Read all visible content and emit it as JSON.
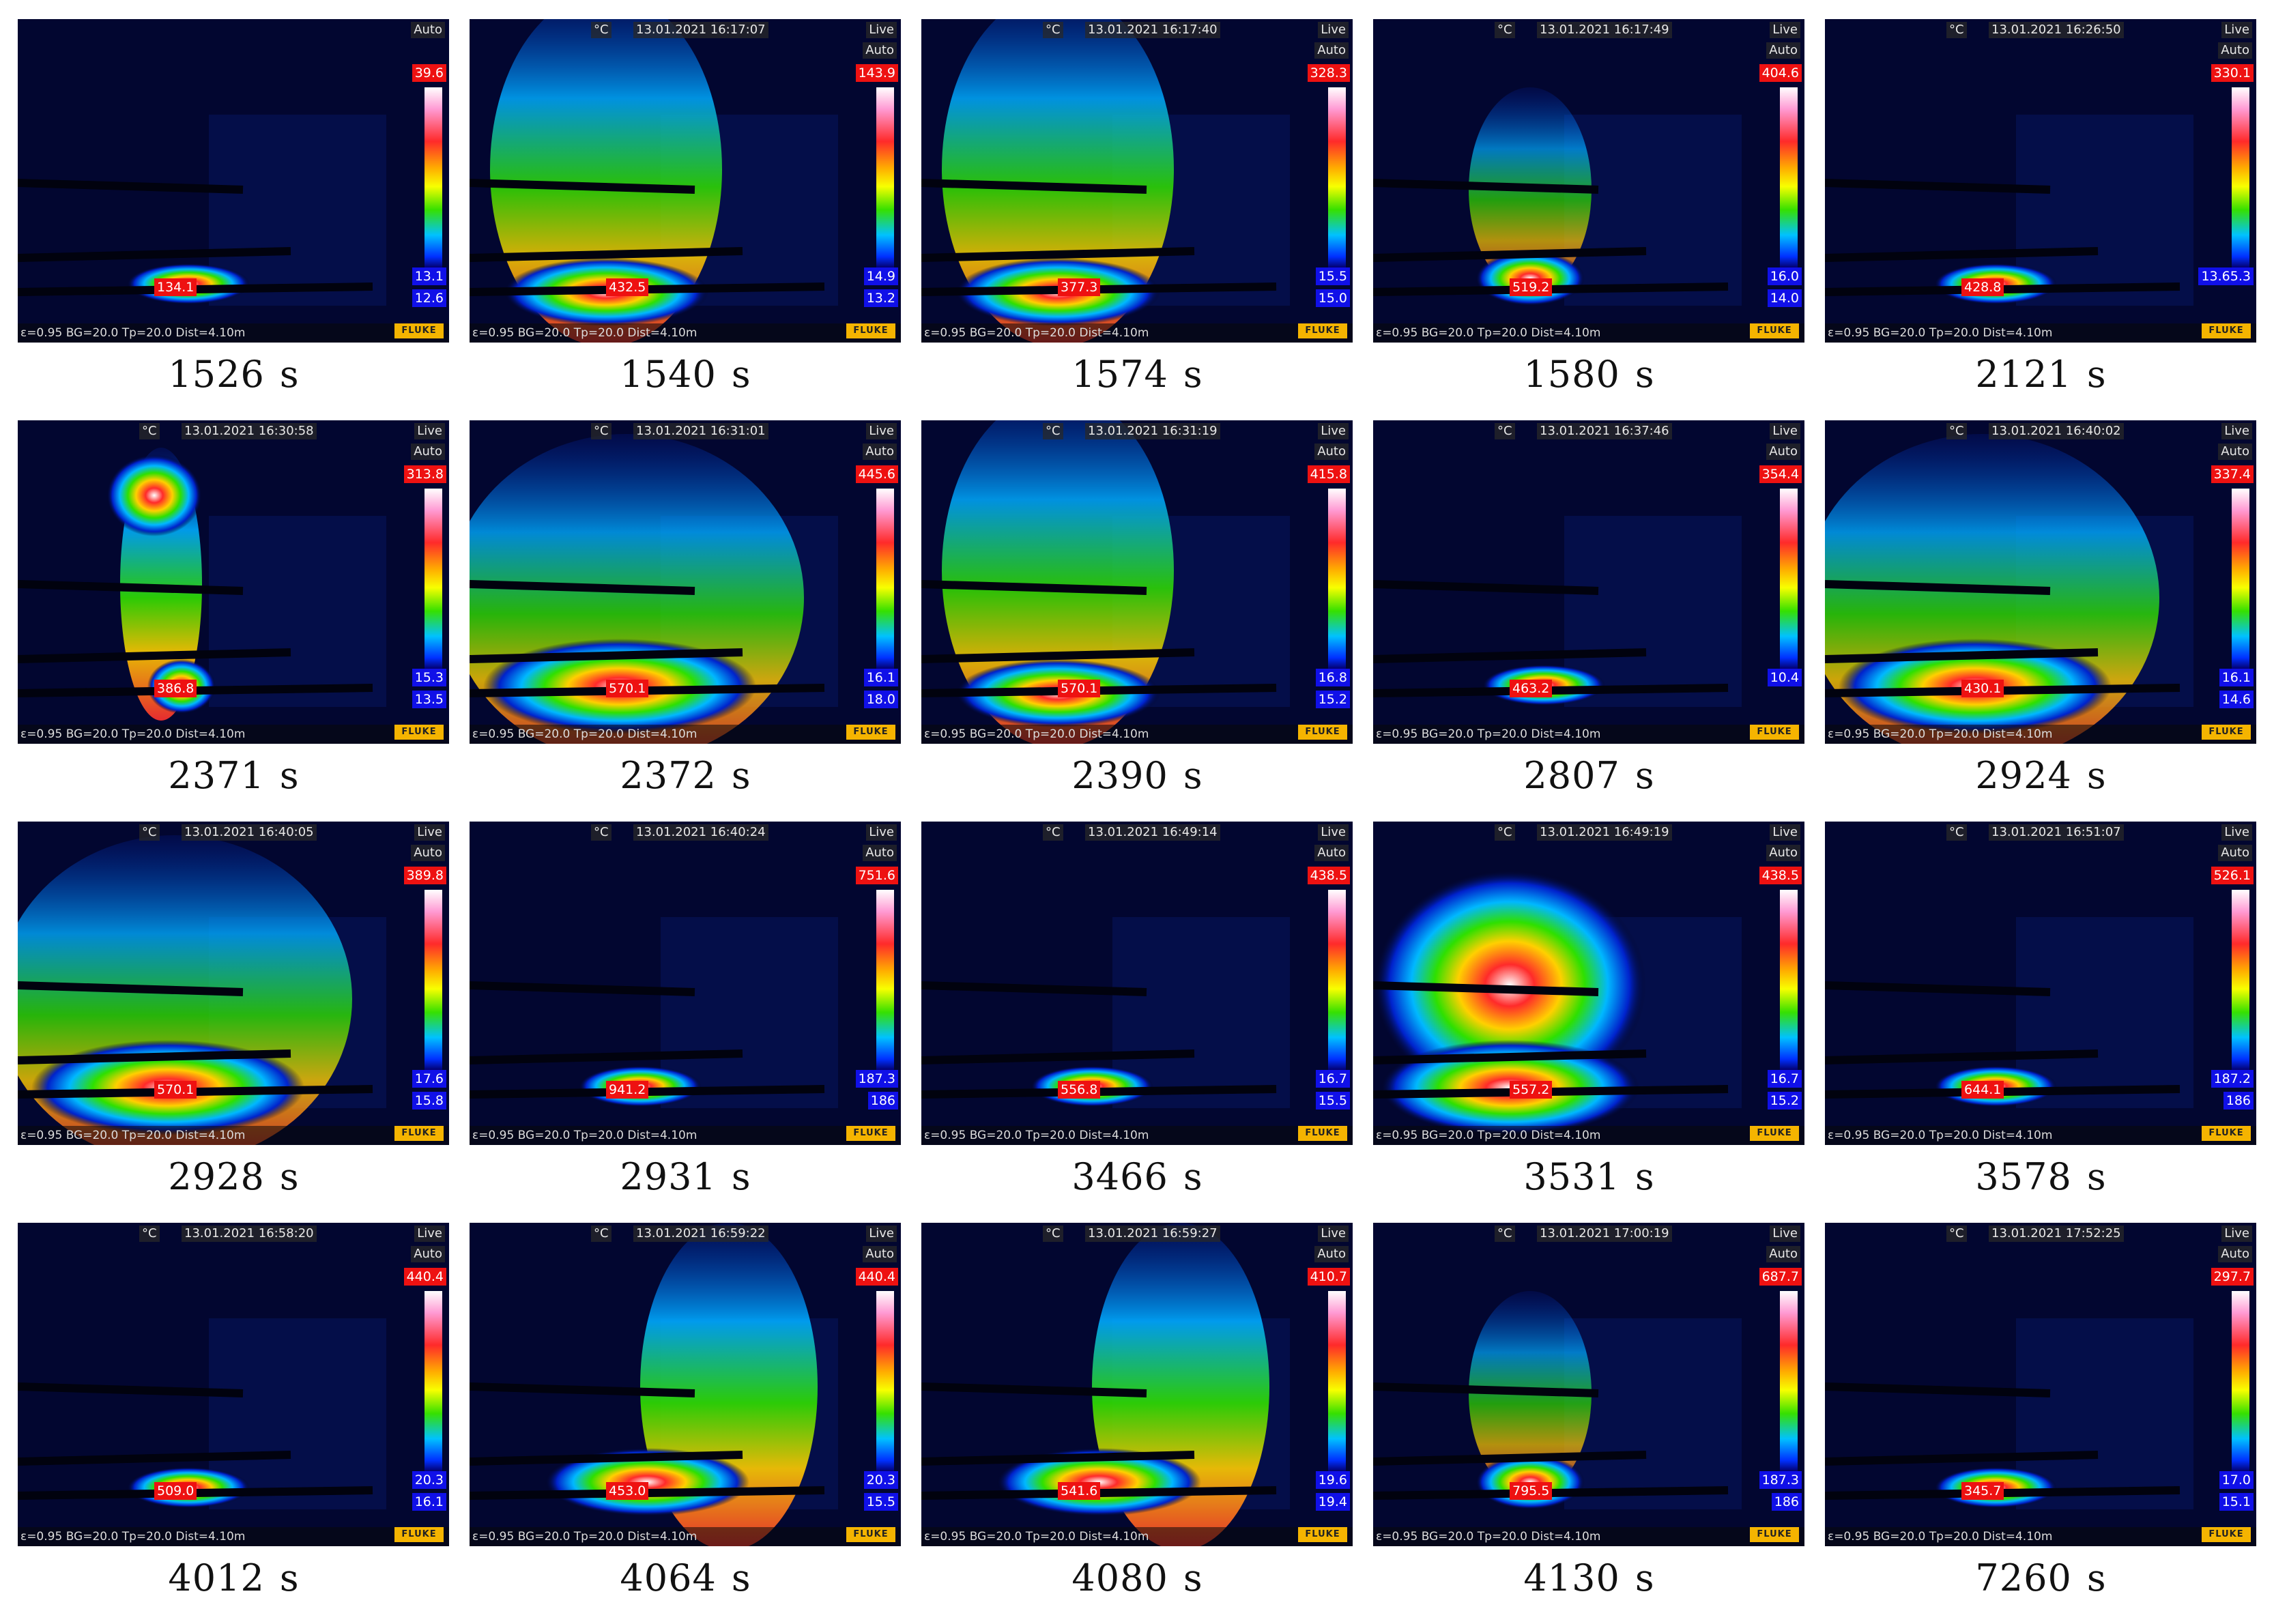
{
  "params_text": "ε=0.95 BG=20.0 Tp=20.0 Dist=4.10m",
  "unit_label": "°C",
  "logo_text": "FLUKE",
  "time_unit": "s",
  "colors": {
    "background": "#01031a",
    "max_tag": "#ee1111",
    "min_tag": "#1010e8",
    "logo": "#f5b400"
  },
  "frames": [
    {
      "time": "1526",
      "timestamp": "",
      "mode": "",
      "range": "Auto",
      "max": "39.6",
      "min": "13.1",
      "spot": "134.1",
      "extra": "12.6",
      "plume": "small"
    },
    {
      "time": "1540",
      "timestamp": "13.01.2021 16:17:07",
      "mode": "Live",
      "range": "Auto",
      "max": "143.9",
      "min": "14.9",
      "spot": "432.5",
      "extra": "13.2",
      "plume": "tall"
    },
    {
      "time": "1574",
      "timestamp": "13.01.2021 16:17:40",
      "mode": "Live",
      "range": "Auto",
      "max": "328.3",
      "min": "15.5",
      "spot": "377.3",
      "extra": "15.0",
      "plume": "tall"
    },
    {
      "time": "1580",
      "timestamp": "13.01.2021 16:17:49",
      "mode": "Live",
      "range": "Auto",
      "max": "404.6",
      "min": "16.0",
      "spot": "519.2",
      "extra": "14.0",
      "plume": "medium"
    },
    {
      "time": "2121",
      "timestamp": "13.01.2021 16:26:50",
      "mode": "Live",
      "range": "Auto",
      "max": "330.1",
      "min": "13.65.3",
      "spot": "428.8",
      "extra": "",
      "plume": "small"
    },
    {
      "time": "2371",
      "timestamp": "13.01.2021 16:30:58",
      "mode": "Live",
      "range": "Auto",
      "max": "313.8",
      "min": "15.3",
      "spot": "386.8",
      "extra": "13.5",
      "plume": "column"
    },
    {
      "time": "2372",
      "timestamp": "13.01.2021 16:31:01",
      "mode": "Live",
      "range": "Auto",
      "max": "445.6",
      "min": "16.1",
      "spot": "570.1",
      "extra": "18.0",
      "plume": "wide"
    },
    {
      "time": "2390",
      "timestamp": "13.01.2021 16:31:19",
      "mode": "Live",
      "range": "Auto",
      "max": "415.8",
      "min": "16.8",
      "spot": "570.1",
      "extra": "15.2",
      "plume": "tall"
    },
    {
      "time": "2807",
      "timestamp": "13.01.2021 16:37:46",
      "mode": "Live",
      "range": "Auto",
      "max": "354.4",
      "min": "10.4",
      "spot": "463.2",
      "extra": "",
      "plume": "small"
    },
    {
      "time": "2924",
      "timestamp": "13.01.2021 16:40:02",
      "mode": "Live",
      "range": "Auto",
      "max": "337.4",
      "min": "16.1",
      "spot": "430.1",
      "extra": "14.6",
      "plume": "wide"
    },
    {
      "time": "2928",
      "timestamp": "13.01.2021 16:40:05",
      "mode": "Live",
      "range": "Auto",
      "max": "389.8",
      "min": "17.6",
      "spot": "570.1",
      "extra": "15.8",
      "plume": "wide"
    },
    {
      "time": "2931",
      "timestamp": "13.01.2021 16:40:24",
      "mode": "Live",
      "range": "Auto",
      "max": "751.6",
      "min": "187.3",
      "spot": "941.2",
      "extra": "186",
      "plume": "small"
    },
    {
      "time": "3466",
      "timestamp": "13.01.2021 16:49:14",
      "mode": "Live",
      "range": "Auto",
      "max": "438.5",
      "min": "16.7",
      "spot": "556.8",
      "extra": "15.5",
      "plume": "small"
    },
    {
      "time": "3531",
      "timestamp": "13.01.2021 16:49:19",
      "mode": "Live",
      "range": "Auto",
      "max": "438.5",
      "min": "16.7",
      "spot": "557.2",
      "extra": "15.2",
      "plume": "ball"
    },
    {
      "time": "3578",
      "timestamp": "13.01.2021 16:51:07",
      "mode": "Live",
      "range": "Auto",
      "max": "526.1",
      "min": "187.2",
      "spot": "644.1",
      "extra": "186",
      "plume": "small"
    },
    {
      "time": "4012",
      "timestamp": "13.01.2021 16:58:20",
      "mode": "Live",
      "range": "Auto",
      "max": "440.4",
      "min": "20.3",
      "spot": "509.0",
      "extra": "16.1",
      "plume": "small"
    },
    {
      "time": "4064",
      "timestamp": "13.01.2021 16:59:22",
      "mode": "Live",
      "range": "Auto",
      "max": "440.4",
      "min": "20.3",
      "spot": "453.0",
      "extra": "15.5",
      "plume": "wall"
    },
    {
      "time": "4080",
      "timestamp": "13.01.2021 16:59:27",
      "mode": "Live",
      "range": "Auto",
      "max": "410.7",
      "min": "19.6",
      "spot": "541.6",
      "extra": "19.4",
      "plume": "wall"
    },
    {
      "time": "4130",
      "timestamp": "13.01.2021 17:00:19",
      "mode": "Live",
      "range": "Auto",
      "max": "687.7",
      "min": "187.3",
      "spot": "795.5",
      "extra": "186",
      "plume": "medium"
    },
    {
      "time": "7260",
      "timestamp": "13.01.2021 17:52:25",
      "mode": "Live",
      "range": "Auto",
      "max": "297.7",
      "min": "17.0",
      "spot": "345.7",
      "extra": "15.1",
      "plume": "small"
    }
  ]
}
